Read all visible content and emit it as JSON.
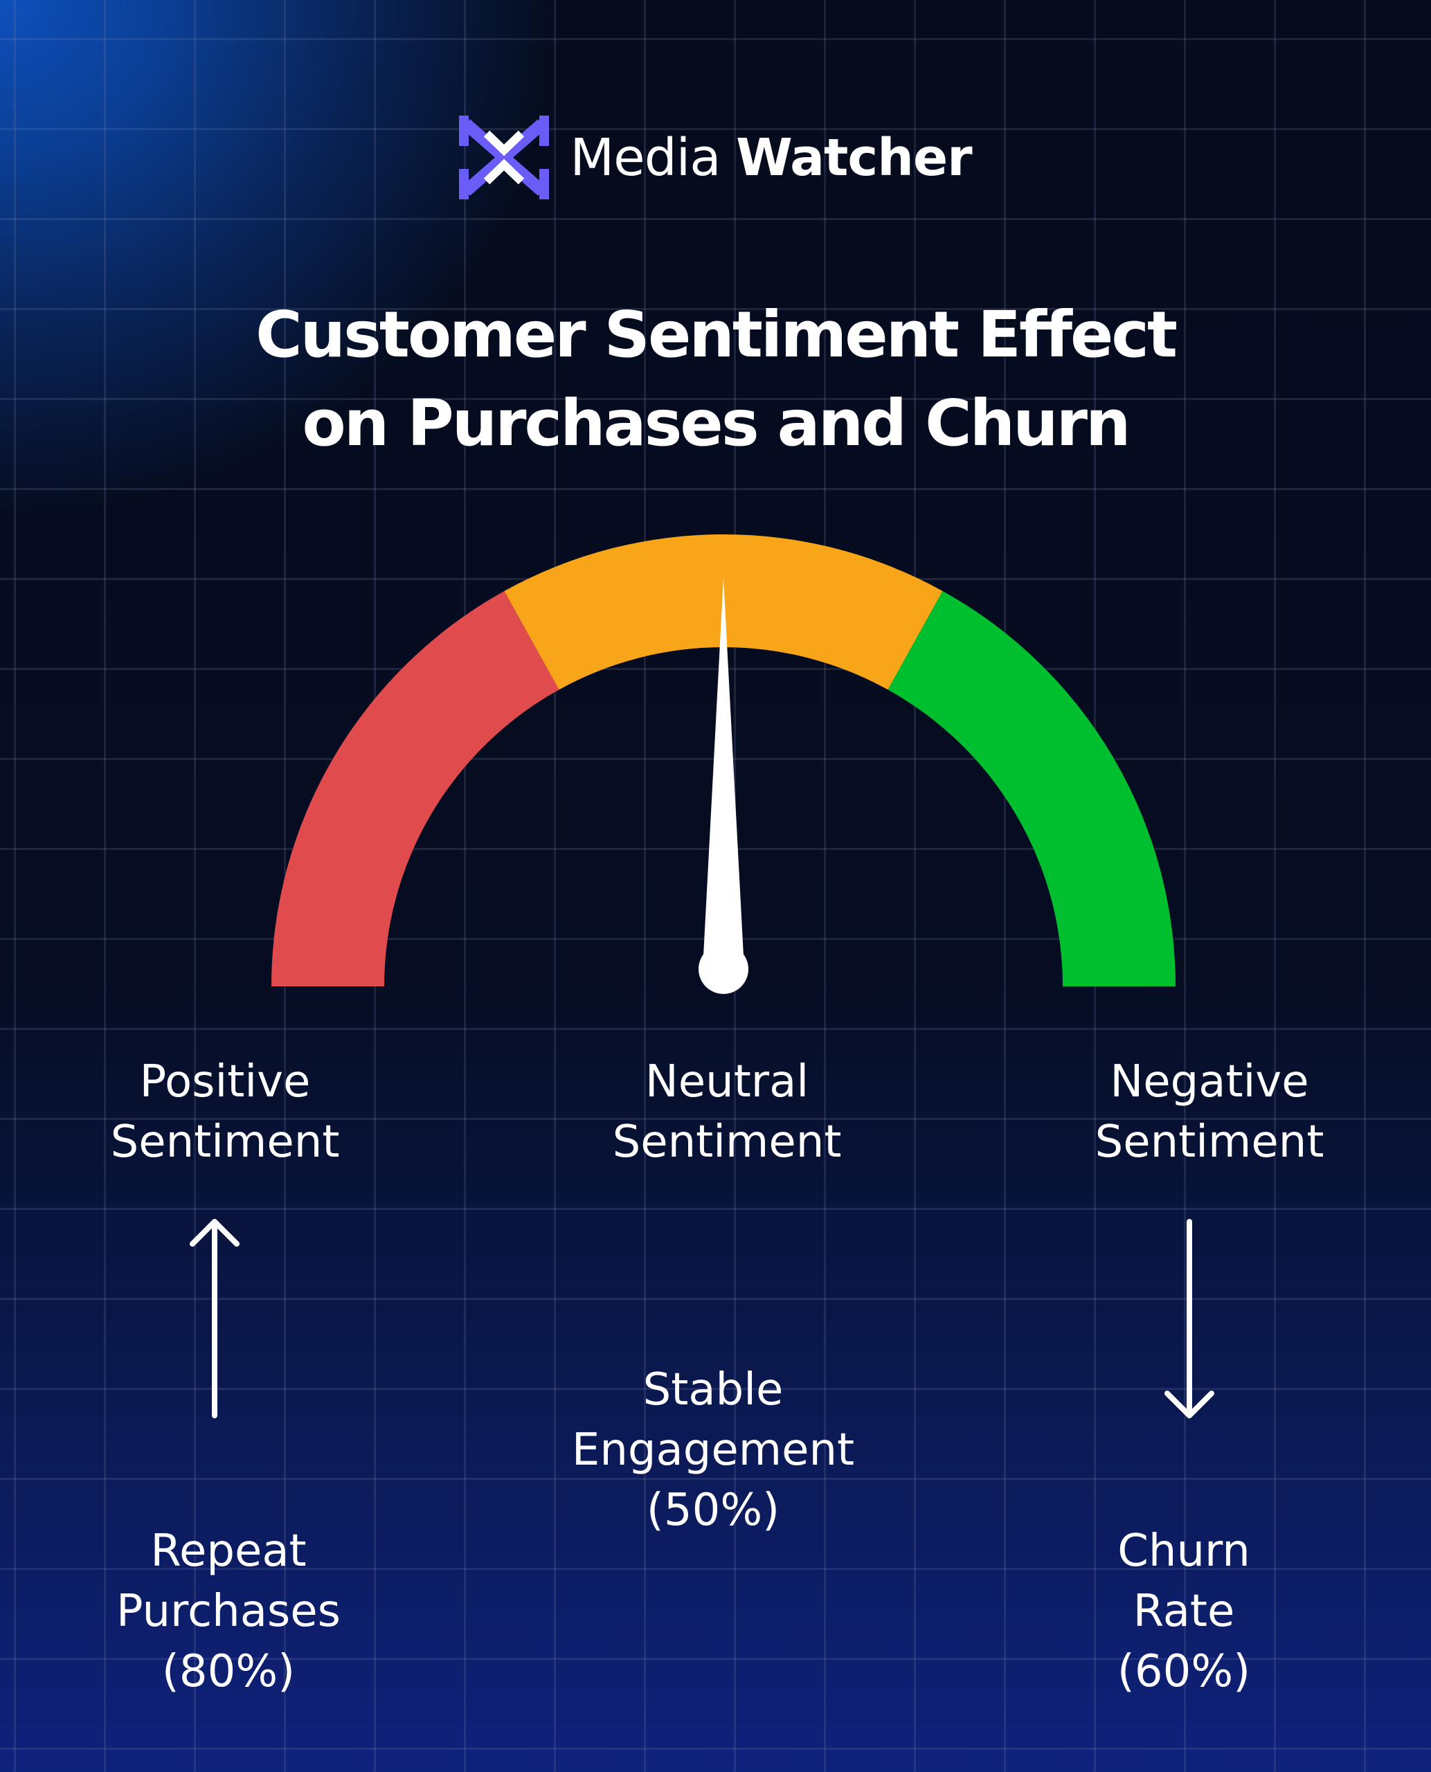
{
  "brand": {
    "name_light": "Media",
    "name_bold": "Watcher"
  },
  "title": {
    "line1": "Customer Sentiment Effect",
    "line2": "on Purchases and Churn"
  },
  "gauge": {
    "segments": [
      {
        "name": "red",
        "color": "#e04c4e"
      },
      {
        "name": "orange",
        "color": "#f9a51a"
      },
      {
        "name": "green",
        "color": "#00bf2e"
      }
    ],
    "needle_level": 0.5
  },
  "sentiments": {
    "positive": {
      "line1": "Positive",
      "line2": "Sentiment"
    },
    "neutral": {
      "line1": "Neutral",
      "line2": "Sentiment"
    },
    "negative": {
      "line1": "Negative",
      "line2": "Sentiment"
    }
  },
  "effects": {
    "positive": {
      "line1": "Repeat",
      "line2": "Purchases",
      "line3": "(80%)",
      "direction": "up"
    },
    "neutral": {
      "line1": "Stable",
      "line2": "Engagement",
      "line3": "(50%)",
      "direction": "none"
    },
    "negative": {
      "line1": "Churn",
      "line2": "Rate",
      "line3": "(60%)",
      "direction": "down"
    }
  },
  "colors": {
    "logo": "#6a5cf6",
    "text": "#ffffff",
    "background": "#03060f"
  }
}
